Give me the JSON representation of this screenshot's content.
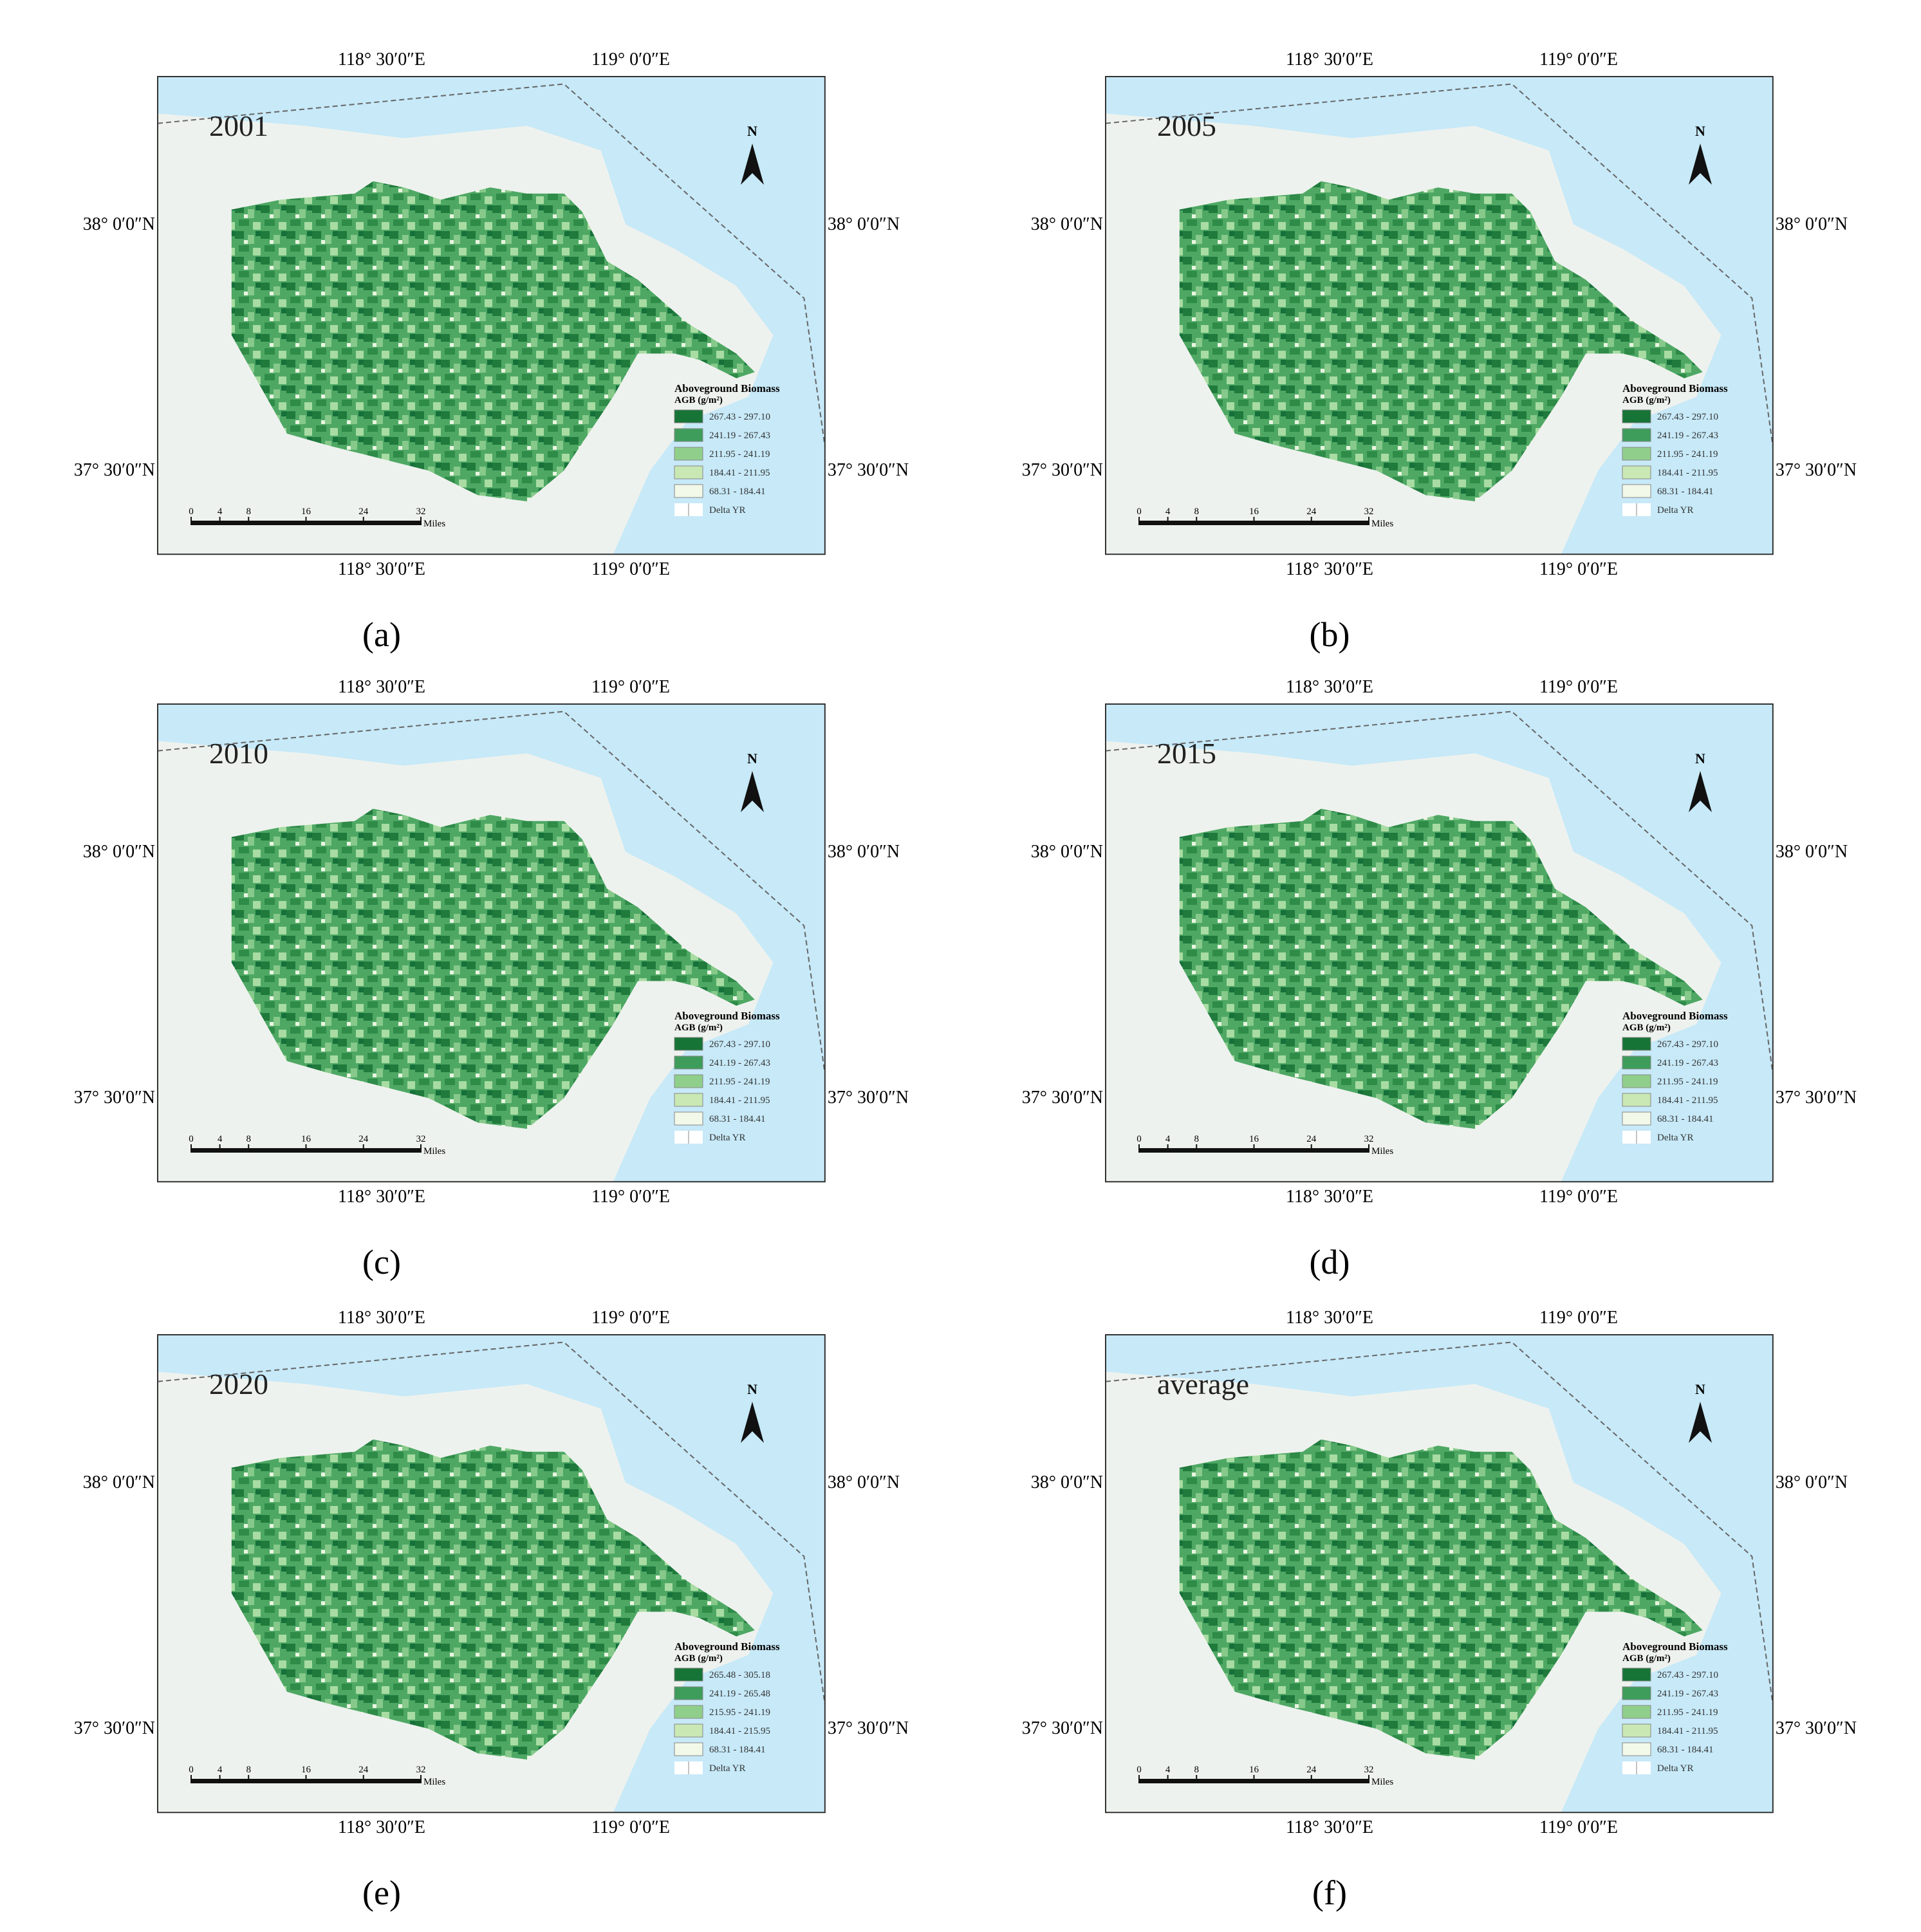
{
  "figure": {
    "lon_labels": [
      "118° 30′0″E",
      "119° 0′0″E"
    ],
    "lat_labels": [
      "38° 0′0″N",
      "37° 30′0″N"
    ],
    "north_label": "N",
    "legend_title": "Aboveground Biomass",
    "legend_unit": "AGB (g/m²)",
    "scale_ticks": [
      0,
      4,
      8,
      16,
      24,
      32
    ],
    "scale_unit": "Miles",
    "panels": [
      {
        "title": "2001",
        "caption": "(a)",
        "legend": [
          "267.43 - 297.10",
          "241.19 - 267.43",
          "211.95 - 241.19",
          "184.41 - 211.95",
          "68.31 - 184.41",
          "Delta YR"
        ]
      },
      {
        "title": "2005",
        "caption": "(b)",
        "legend": [
          "267.43 - 297.10",
          "241.19 - 267.43",
          "211.95 - 241.19",
          "184.41 - 211.95",
          "68.31 - 184.41",
          "Delta YR"
        ]
      },
      {
        "title": "2010",
        "caption": "(c)",
        "legend": [
          "267.43 - 297.10",
          "241.19 - 267.43",
          "211.95 - 241.19",
          "184.41 - 211.95",
          "68.31 - 184.41",
          "Delta YR"
        ]
      },
      {
        "title": "2015",
        "caption": "(d)",
        "legend": [
          "267.43 - 297.10",
          "241.19 - 267.43",
          "211.95 - 241.19",
          "184.41 - 211.95",
          "68.31 - 184.41",
          "Delta YR"
        ]
      },
      {
        "title": "2020",
        "caption": "(e)",
        "legend": [
          "265.48 - 305.18",
          "241.19 - 265.48",
          "215.95 - 241.19",
          "184.41 - 215.95",
          "68.31 - 184.41",
          "Delta YR"
        ]
      },
      {
        "title": "average",
        "caption": "(f)",
        "legend": [
          "267.43 - 297.10",
          "241.19 - 267.43",
          "211.95 - 241.19",
          "184.41 - 211.95",
          "68.31 - 184.41",
          "Delta YR"
        ]
      }
    ]
  }
}
